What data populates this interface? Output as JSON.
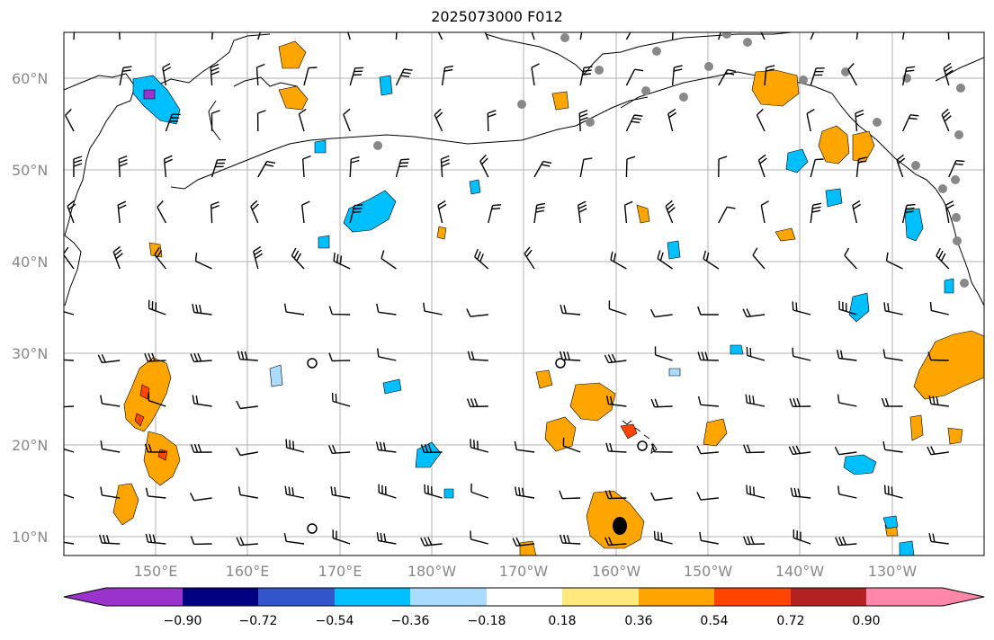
{
  "title": "2025073000 F012",
  "map": {
    "lat_labels": [
      "60°N",
      "50°N",
      "40°N",
      "30°N",
      "20°N",
      "10°N"
    ],
    "lon_labels": [
      "150°E",
      "160°E",
      "170°E",
      "180°W",
      "170°W",
      "160°W",
      "150°W",
      "140°W",
      "130°W"
    ],
    "land_color": "#ffffff",
    "gridline_color": "#b0b0b0"
  },
  "colorbar": {
    "extend": "both",
    "tick_labels": [
      "−0.90",
      "−0.72",
      "−0.54",
      "−0.36",
      "−0.18",
      "0.18",
      "0.36",
      "0.54",
      "0.72",
      "0.90"
    ],
    "colors": [
      "#9933cc",
      "#000080",
      "#3355cc",
      "#00bfff",
      "#aadcff",
      "#ffffff",
      "#ffe87c",
      "#ffa500",
      "#ff4500",
      "#b22222",
      "#ff88aa"
    ]
  }
}
